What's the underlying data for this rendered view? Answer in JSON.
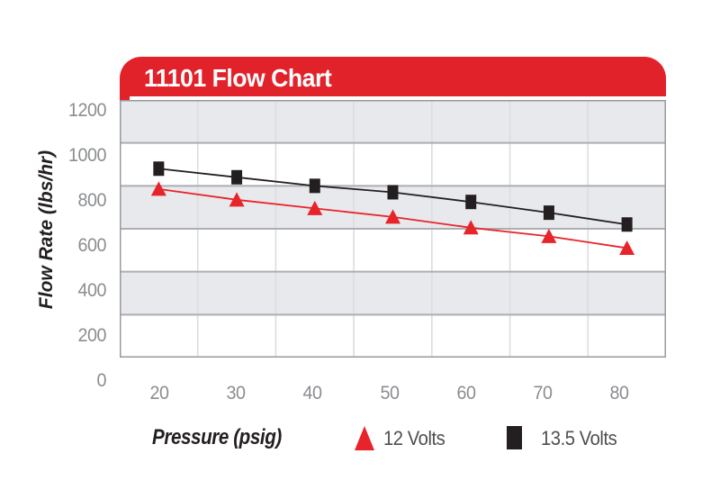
{
  "chart_data": {
    "type": "line",
    "title": "11101 Flow Chart",
    "xlabel": "Pressure (psig)",
    "ylabel": "Flow Rate (lbs/hr)",
    "x": [
      20,
      30,
      40,
      50,
      60,
      70,
      80
    ],
    "xticks": [
      "20",
      "30",
      "40",
      "50",
      "60",
      "70",
      "80"
    ],
    "yticks": [
      "0",
      "200",
      "400",
      "600",
      "800",
      "1000",
      "1200"
    ],
    "xlim": [
      15,
      85
    ],
    "ylim": [
      0,
      1200
    ],
    "ytick_step": 200,
    "grid": "horizontal-bands-alternating",
    "legend_position": "bottom",
    "series": [
      {
        "name": "12 Volts",
        "marker": "triangle",
        "color": "#E8242B",
        "values": [
          785,
          735,
          695,
          655,
          605,
          565,
          510
        ]
      },
      {
        "name": "13.5 Volts",
        "marker": "square",
        "color": "#231F20",
        "values": [
          880,
          840,
          800,
          770,
          725,
          675,
          620
        ]
      }
    ]
  },
  "colors": {
    "banner_red": "#E2222A",
    "banner_title_text": "#FFFFFF",
    "band_gray": "#E8E9EC",
    "band_white": "#FFFFFF",
    "grid_major": "#ACAEB1",
    "grid_minor": "#DCDDE0",
    "plot_border": "#97999C",
    "tick_text": "#8B8D90",
    "axis_title_text": "#231F20",
    "legend_text": "#4E4F51",
    "background": "#FFFFFF"
  }
}
